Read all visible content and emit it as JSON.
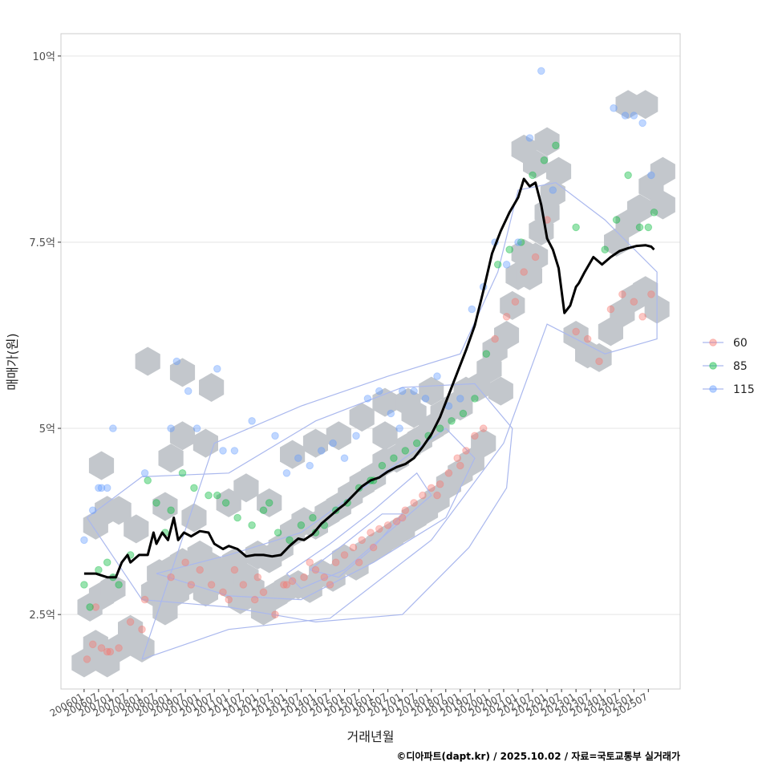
{
  "chart_data": {
    "type": "scatter",
    "title": "",
    "xlabel": "거래년월",
    "ylabel": "매매가(원)",
    "caption": "©디아파트(dapt.kr) / 2025.10.02 / 자료=국토교통부 실거래가",
    "ylim": [
      1.5,
      10.3
    ],
    "xlim": [
      2005.2,
      2026.6
    ],
    "y_ticks": [
      {
        "value": 2.5,
        "label": "2.5억"
      },
      {
        "value": 5,
        "label": "5억"
      },
      {
        "value": 7.5,
        "label": "7.5억"
      },
      {
        "value": 10,
        "label": "10억"
      }
    ],
    "x_ticks": [
      "200601",
      "200607",
      "200701",
      "200707",
      "200801",
      "200807",
      "200901",
      "200907",
      "201001",
      "201007",
      "201101",
      "201107",
      "201201",
      "201207",
      "201301",
      "201307",
      "201401",
      "201407",
      "201501",
      "201507",
      "201601",
      "201607",
      "201701",
      "201707",
      "201801",
      "201807",
      "201901",
      "201907",
      "202001",
      "202007",
      "202101",
      "202107",
      "202201",
      "202207",
      "202301",
      "202307",
      "202401",
      "202407",
      "202501",
      "202507"
    ],
    "legend": {
      "position": "right",
      "entries": [
        {
          "label": "60",
          "color": "#F8766D"
        },
        {
          "label": "85",
          "color": "#00BA38"
        },
        {
          "label": "115",
          "color": "#619CFF"
        }
      ]
    },
    "colors": {
      "hexbin": "#c3c7cc",
      "contour": "#aab8ee",
      "trend": "#000000",
      "grid": "#e5e5e5",
      "panel_border": "#cccccc"
    },
    "trend_line": {
      "name": "median",
      "x": [
        2006.0,
        2006.4,
        2006.8,
        2007.1,
        2007.3,
        2007.5,
        2007.6,
        2007.9,
        2008.2,
        2008.4,
        2008.5,
        2008.7,
        2008.9,
        2009.1,
        2009.25,
        2009.45,
        2009.7,
        2010.0,
        2010.3,
        2010.5,
        2010.8,
        2011.0,
        2011.3,
        2011.6,
        2011.9,
        2012.2,
        2012.5,
        2012.8,
        2013.1,
        2013.4,
        2013.6,
        2013.9,
        2014.2,
        2014.5,
        2014.8,
        2015.0,
        2015.3,
        2015.6,
        2015.9,
        2016.2,
        2016.5,
        2016.8,
        2017.1,
        2017.4,
        2017.7,
        2018.0,
        2018.3,
        2018.6,
        2018.9,
        2019.2,
        2019.5,
        2019.8,
        2020.1,
        2020.4,
        2020.7,
        2021.0,
        2021.2,
        2021.4,
        2021.6,
        2021.8,
        2022.0,
        2022.2,
        2022.4,
        2022.6,
        2022.8,
        2023.0,
        2023.1,
        2023.3,
        2023.6,
        2023.9,
        2024.2,
        2024.5,
        2024.8,
        2025.1,
        2025.4,
        2025.6,
        2025.7
      ],
      "y": [
        3.05,
        3.05,
        3.0,
        3.0,
        3.2,
        3.3,
        3.2,
        3.3,
        3.3,
        3.6,
        3.45,
        3.6,
        3.5,
        3.8,
        3.5,
        3.6,
        3.55,
        3.62,
        3.6,
        3.45,
        3.38,
        3.42,
        3.38,
        3.28,
        3.3,
        3.3,
        3.28,
        3.3,
        3.42,
        3.52,
        3.5,
        3.58,
        3.72,
        3.82,
        3.92,
        3.98,
        4.1,
        4.22,
        4.3,
        4.34,
        4.42,
        4.48,
        4.52,
        4.6,
        4.75,
        4.92,
        5.15,
        5.45,
        5.75,
        6.05,
        6.38,
        6.85,
        7.35,
        7.65,
        7.9,
        8.1,
        8.35,
        8.25,
        8.3,
        8.0,
        7.55,
        7.4,
        7.15,
        6.55,
        6.65,
        6.9,
        6.95,
        7.1,
        7.3,
        7.2,
        7.3,
        7.38,
        7.42,
        7.45,
        7.46,
        7.44,
        7.4
      ]
    },
    "series": [
      {
        "name": "60",
        "color": "#F8766D",
        "x": [
          2006.1,
          2006.3,
          2006.6,
          2006.9,
          2007.2,
          2007.6,
          2008.0,
          2006.4,
          2006.8,
          2008.1,
          2009.0,
          2009.5,
          2009.7,
          2010.0,
          2010.4,
          2010.8,
          2011.2,
          2011.5,
          2011.9,
          2012.2,
          2012.6,
          2012.9,
          2013.2,
          2013.6,
          2013.8,
          2014.0,
          2014.3,
          2014.7,
          2015.0,
          2015.3,
          2015.6,
          2015.9,
          2016.2,
          2016.5,
          2016.8,
          2017.1,
          2017.4,
          2017.7,
          2018.0,
          2018.3,
          2018.6,
          2018.9,
          2019.2,
          2019.5,
          2019.8,
          2020.2,
          2020.6,
          2020.9,
          2021.2,
          2021.6,
          2022.0,
          2023.0,
          2023.4,
          2023.8,
          2024.2,
          2024.6,
          2025.0,
          2025.3,
          2025.6,
          2014.5,
          2015.5,
          2016.0,
          2017.0,
          2018.2,
          2019.0,
          2012.0,
          2013.0,
          2011.0
        ],
        "y": [
          1.9,
          2.1,
          2.05,
          2.0,
          2.05,
          2.4,
          2.3,
          2.6,
          2.0,
          2.7,
          3.0,
          3.2,
          2.9,
          3.1,
          2.9,
          2.8,
          3.1,
          2.9,
          2.7,
          2.8,
          2.5,
          2.9,
          2.95,
          3.0,
          3.2,
          3.1,
          3.0,
          3.2,
          3.3,
          3.4,
          3.5,
          3.6,
          3.65,
          3.7,
          3.75,
          3.9,
          4.0,
          4.1,
          4.2,
          4.25,
          4.4,
          4.6,
          4.7,
          4.9,
          5.0,
          6.2,
          6.5,
          6.7,
          7.1,
          7.3,
          7.8,
          6.3,
          6.2,
          5.9,
          6.6,
          6.8,
          6.7,
          6.5,
          6.8,
          2.9,
          3.2,
          3.4,
          3.8,
          4.1,
          4.5,
          3.0,
          2.9,
          2.7
        ]
      },
      {
        "name": "85",
        "color": "#00BA38",
        "x": [
          2006.0,
          2006.2,
          2006.5,
          2006.8,
          2007.2,
          2007.6,
          2008.2,
          2008.5,
          2009.0,
          2009.4,
          2009.8,
          2010.3,
          2010.9,
          2011.3,
          2011.8,
          2012.2,
          2012.7,
          2013.1,
          2013.5,
          2013.9,
          2014.3,
          2014.7,
          2015.1,
          2015.5,
          2015.9,
          2016.3,
          2016.7,
          2017.1,
          2017.5,
          2017.9,
          2018.3,
          2018.7,
          2019.1,
          2019.5,
          2019.9,
          2020.3,
          2020.7,
          2021.1,
          2021.5,
          2021.9,
          2022.3,
          2023.0,
          2024.0,
          2024.4,
          2024.8,
          2025.2,
          2025.5,
          2025.7,
          2007.0,
          2008.8,
          2010.6,
          2012.4,
          2014.0,
          2016.0
        ],
        "y": [
          2.9,
          2.6,
          3.1,
          3.2,
          2.9,
          3.3,
          4.3,
          4.0,
          3.9,
          4.4,
          4.2,
          4.1,
          4.0,
          3.8,
          3.7,
          3.9,
          3.6,
          3.5,
          3.7,
          3.8,
          3.7,
          3.9,
          4.0,
          4.2,
          4.3,
          4.5,
          4.6,
          4.7,
          4.8,
          4.9,
          5.0,
          5.1,
          5.2,
          5.4,
          6.0,
          7.2,
          7.4,
          7.5,
          8.4,
          8.6,
          8.8,
          7.7,
          7.4,
          7.8,
          8.4,
          7.7,
          7.7,
          7.9,
          3.0,
          3.6,
          4.1,
          4.0,
          3.6,
          4.3
        ]
      },
      {
        "name": "115",
        "color": "#619CFF",
        "x": [
          2006.0,
          2006.3,
          2006.5,
          2006.8,
          2007.0,
          2008.1,
          2009.0,
          2009.2,
          2009.6,
          2010.6,
          2011.2,
          2011.8,
          2012.6,
          2013.4,
          2013.8,
          2014.2,
          2014.6,
          2015.0,
          2015.4,
          2015.8,
          2016.2,
          2016.6,
          2017.0,
          2017.4,
          2017.8,
          2018.2,
          2018.6,
          2019.0,
          2019.4,
          2019.8,
          2020.2,
          2020.6,
          2021.0,
          2021.4,
          2021.8,
          2022.2,
          2024.3,
          2024.7,
          2025.0,
          2025.3,
          2025.6,
          2006.6,
          2009.9,
          2010.8,
          2013.0,
          2016.9
        ],
        "y": [
          3.5,
          3.9,
          4.2,
          4.2,
          5.0,
          4.4,
          5.0,
          5.9,
          5.5,
          5.8,
          4.7,
          5.1,
          4.9,
          4.6,
          4.5,
          4.7,
          4.8,
          4.6,
          4.9,
          5.4,
          5.5,
          5.2,
          5.5,
          5.5,
          5.4,
          5.7,
          5.3,
          5.4,
          6.6,
          6.9,
          7.5,
          7.2,
          7.5,
          8.9,
          9.8,
          8.2,
          9.3,
          9.2,
          9.2,
          9.1,
          8.4,
          4.2,
          5.0,
          4.7,
          4.4,
          5.0
        ]
      }
    ],
    "hexbins": {
      "x": [
        2006.0,
        2006.4,
        2006.8,
        2006.2,
        2006.6,
        2007.0,
        2006.4,
        2006.8,
        2006.6,
        2007.2,
        2007.6,
        2008.0,
        2008.4,
        2008.8,
        2009.2,
        2009.6,
        2008.6,
        2009.0,
        2009.4,
        2009.8,
        2010.2,
        2010.6,
        2011.0,
        2011.4,
        2011.8,
        2012.2,
        2012.6,
        2013.0,
        2013.4,
        2013.8,
        2014.2,
        2014.6,
        2015.0,
        2015.4,
        2015.8,
        2016.2,
        2016.6,
        2017.0,
        2017.4,
        2017.8,
        2018.2,
        2018.6,
        2019.0,
        2019.4,
        2019.8,
        2010.0,
        2010.4,
        2010.8,
        2011.2,
        2011.6,
        2012.0,
        2012.4,
        2012.8,
        2013.2,
        2013.6,
        2014.0,
        2014.4,
        2014.8,
        2015.2,
        2015.6,
        2016.0,
        2016.4,
        2016.8,
        2017.2,
        2017.6,
        2018.0,
        2018.4,
        2018.8,
        2019.2,
        2009.0,
        2009.4,
        2010.2,
        2011.0,
        2011.6,
        2012.4,
        2013.2,
        2014.0,
        2014.8,
        2015.6,
        2016.4,
        2017.2,
        2018.0,
        2019.6,
        2020.0,
        2020.4,
        2020.2,
        2020.6,
        2020.8,
        2021.0,
        2021.2,
        2021.4,
        2021.6,
        2021.8,
        2022.0,
        2022.2,
        2022.4,
        2021.2,
        2021.6,
        2022.0,
        2023.0,
        2023.4,
        2023.8,
        2024.2,
        2024.6,
        2025.0,
        2025.4,
        2025.8,
        2024.4,
        2024.8,
        2025.2,
        2025.6,
        2026.0,
        2024.8,
        2025.4,
        2026.0,
        2008.2,
        2009.4,
        2010.4,
        2007.2,
        2007.8,
        2008.8,
        2009.8,
        2016.4,
        2017.4,
        2018.2,
        2019.0
      ],
      "y": [
        1.85,
        2.1,
        1.85,
        2.6,
        2.75,
        2.85,
        3.7,
        3.9,
        4.5,
        2.05,
        2.3,
        2.05,
        2.8,
        2.55,
        2.8,
        2.95,
        3.05,
        3.1,
        3.2,
        3.0,
        2.8,
        2.95,
        2.9,
        2.7,
        2.85,
        2.55,
        2.75,
        2.85,
        2.9,
        2.85,
        3.05,
        3.0,
        3.25,
        3.15,
        3.35,
        3.45,
        3.55,
        3.65,
        3.8,
        3.9,
        4.05,
        4.25,
        4.4,
        4.55,
        4.8,
        3.3,
        3.15,
        3.05,
        3.2,
        3.0,
        3.3,
        3.25,
        3.4,
        3.6,
        3.75,
        3.7,
        3.85,
        3.95,
        4.1,
        4.25,
        4.35,
        4.55,
        4.6,
        4.75,
        4.85,
        5.0,
        5.2,
        5.3,
        5.5,
        4.6,
        4.9,
        4.8,
        4.0,
        4.2,
        4.0,
        4.65,
        4.8,
        4.9,
        5.15,
        5.35,
        5.35,
        5.5,
        5.55,
        5.8,
        5.5,
        6.05,
        6.25,
        6.65,
        7.05,
        7.35,
        7.05,
        7.3,
        7.65,
        7.9,
        8.15,
        8.45,
        8.75,
        8.55,
        8.85,
        6.25,
        6.0,
        5.95,
        6.3,
        6.55,
        6.75,
        6.85,
        6.6,
        7.5,
        7.75,
        7.95,
        8.25,
        8.45,
        9.35,
        9.35,
        8.0,
        5.9,
        5.75,
        5.55,
        3.9,
        3.65,
        3.95,
        3.8,
        4.9,
        5.2,
        5.05,
        5.3
      ]
    },
    "contours": [
      {
        "x": [
          2008.5,
          2011.0,
          2013.5,
          2016.0,
          2018.5,
          2019.5,
          2018.5,
          2016.0,
          2013.5,
          2011.0,
          2008.5
        ],
        "y": [
          3.05,
          3.3,
          3.6,
          4.3,
          5.0,
          4.6,
          3.8,
          3.2,
          2.7,
          2.75,
          3.05
        ]
      },
      {
        "x": [
          2013.0,
          2014.5,
          2016.0,
          2017.5,
          2018.0,
          2016.5,
          2015.0,
          2013.5,
          2013.0
        ],
        "y": [
          3.05,
          3.45,
          3.9,
          4.4,
          4.1,
          3.6,
          3.1,
          2.85,
          3.05
        ]
      },
      {
        "x": [
          2013.8,
          2015.0,
          2016.3,
          2017.0,
          2016.0,
          2014.8,
          2013.8
        ],
        "y": [
          3.1,
          3.45,
          3.85,
          3.85,
          3.4,
          3.0,
          3.1
        ]
      },
      {
        "x": [
          2006.1,
          2008.0,
          2011.0,
          2014.0,
          2017.0,
          2019.5,
          2020.8,
          2020.6,
          2019.3,
          2017.0,
          2014.0,
          2011.0,
          2008.0,
          2006.1
        ],
        "y": [
          3.8,
          4.35,
          4.4,
          5.1,
          5.55,
          5.6,
          5.0,
          4.2,
          3.4,
          2.5,
          2.4,
          2.6,
          2.7,
          3.8
        ]
      },
      {
        "x": [
          2008.0,
          2011.0,
          2014.5,
          2018.0,
          2020.5,
          2022.0,
          2024.0,
          2025.8,
          2025.8,
          2024.0,
          2022.3,
          2021.0,
          2020.3,
          2019.0,
          2016.5,
          2013.5,
          2010.5,
          2008.0
        ],
        "y": [
          1.9,
          2.3,
          2.45,
          3.5,
          4.8,
          6.4,
          6.0,
          6.2,
          7.1,
          7.8,
          8.3,
          8.2,
          7.1,
          6.0,
          5.7,
          5.3,
          4.8,
          1.9
        ]
      }
    ]
  }
}
